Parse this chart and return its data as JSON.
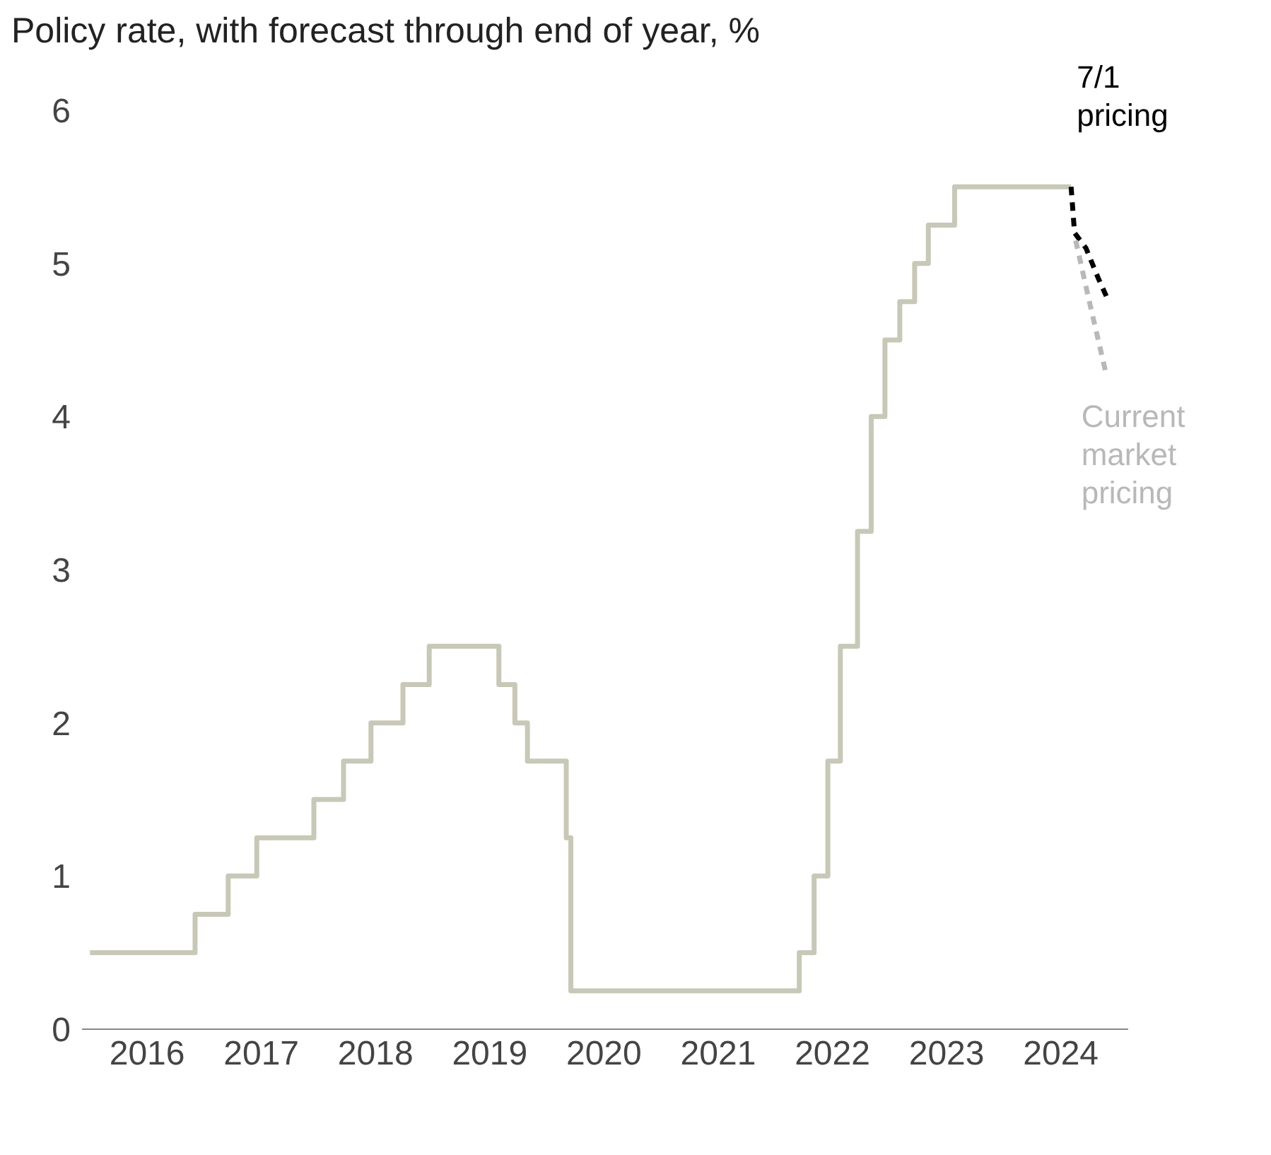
{
  "chart_data": {
    "type": "line",
    "title": "Policy rate, with forecast through end of year, %",
    "xlim": [
      2015.93,
      2025.09
    ],
    "xticks": [
      {
        "value": 2016.5,
        "label": "2016"
      },
      {
        "value": 2017.5,
        "label": "2017"
      },
      {
        "value": 2018.5,
        "label": "2018"
      },
      {
        "value": 2019.5,
        "label": "2019"
      },
      {
        "value": 2020.5,
        "label": "2020"
      },
      {
        "value": 2021.5,
        "label": "2021"
      },
      {
        "value": 2022.5,
        "label": "2022"
      },
      {
        "value": 2023.5,
        "label": "2023"
      },
      {
        "value": 2024.5,
        "label": "2024"
      }
    ],
    "ylim": [
      0,
      6
    ],
    "yticks": [
      0,
      1,
      2,
      3,
      4,
      5,
      6
    ],
    "grid": false,
    "marker": "none",
    "series": [
      {
        "type": "step",
        "color": "#c8c8b8",
        "line_style": "solid",
        "x": [
          2016.0,
          2016.92,
          2017.21,
          2017.46,
          2017.96,
          2018.22,
          2018.46,
          2018.74,
          2018.97,
          2019.58,
          2019.72,
          2019.83,
          2020.17,
          2020.21,
          2022.21,
          2022.34,
          2022.46,
          2022.57,
          2022.72,
          2022.84,
          2022.96,
          2023.09,
          2023.22,
          2023.34,
          2023.57,
          2024.59
        ],
        "values": [
          0.5,
          0.75,
          1.0,
          1.25,
          1.5,
          1.75,
          2.0,
          2.25,
          2.5,
          2.25,
          2.0,
          1.75,
          1.25,
          0.25,
          0.5,
          1.0,
          1.75,
          2.5,
          3.25,
          4.0,
          4.5,
          4.75,
          5.0,
          5.25,
          5.5,
          5.5
        ]
      },
      {
        "color": "#000000",
        "line_style": "dashed",
        "x": [
          2024.59,
          2024.62,
          2024.72,
          2024.83,
          2024.92
        ],
        "values": [
          5.5,
          5.2,
          5.1,
          4.9,
          4.75
        ]
      },
      {
        "color": "#b8b8b8",
        "line_style": "dashed",
        "x": [
          2024.63,
          2024.75,
          2024.89
        ],
        "values": [
          5.15,
          4.75,
          4.3
        ]
      }
    ],
    "annotations": [
      "7/1 pricing",
      "Current market pricing"
    ]
  }
}
